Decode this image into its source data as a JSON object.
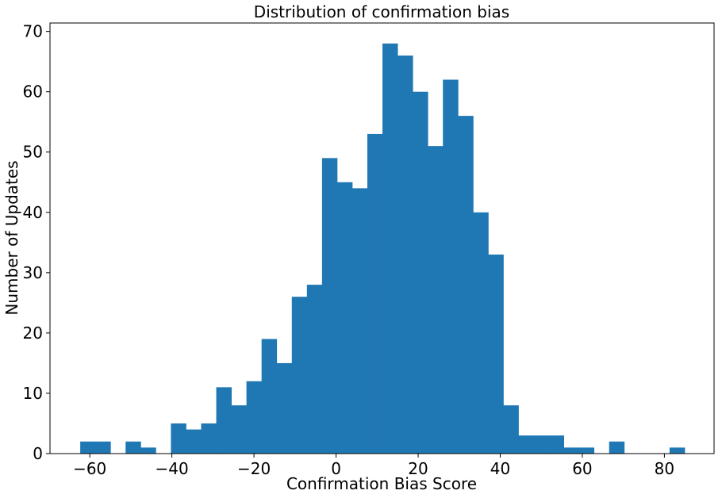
{
  "chart_data": {
    "type": "bar",
    "title": "Distribution of confirmation bias",
    "xlabel": "Confirmation Bias Score",
    "ylabel": "Number of Updates",
    "xlim": [
      -69.7,
      92.1
    ],
    "ylim": [
      0,
      71.4
    ],
    "bin_edges": [
      -62.33,
      -58.65,
      -54.96,
      -51.28,
      -47.6,
      -43.92,
      -40.24,
      -36.56,
      -32.87,
      -29.19,
      -25.51,
      -21.83,
      -18.15,
      -14.47,
      -10.78,
      -7.1,
      -3.42,
      0.26,
      3.94,
      7.62,
      11.31,
      14.99,
      18.67,
      22.35,
      26.03,
      29.71,
      33.4,
      37.08,
      40.76,
      44.44,
      48.12,
      51.8,
      55.49,
      59.17,
      62.85,
      66.53,
      70.21,
      73.89,
      77.58,
      81.26,
      84.94
    ],
    "values": [
      2,
      2,
      0,
      2,
      1,
      0,
      5,
      4,
      5,
      11,
      8,
      12,
      19,
      15,
      26,
      28,
      49,
      45,
      44,
      53,
      68,
      66,
      60,
      51,
      62,
      56,
      40,
      33,
      8,
      3,
      3,
      3,
      1,
      1,
      0,
      2,
      0,
      0,
      0,
      1
    ],
    "bar_color": "#1f77b4",
    "x_ticks": [
      -60,
      -40,
      -20,
      0,
      20,
      40,
      60,
      80
    ],
    "x_tick_labels": [
      "−60",
      "−40",
      "−20",
      "0",
      "20",
      "40",
      "60",
      "80"
    ],
    "y_ticks": [
      0,
      10,
      20,
      30,
      40,
      50,
      60,
      70
    ],
    "y_tick_labels": [
      "0",
      "10",
      "20",
      "30",
      "40",
      "50",
      "60",
      "70"
    ],
    "grid": false,
    "legend": "none"
  }
}
